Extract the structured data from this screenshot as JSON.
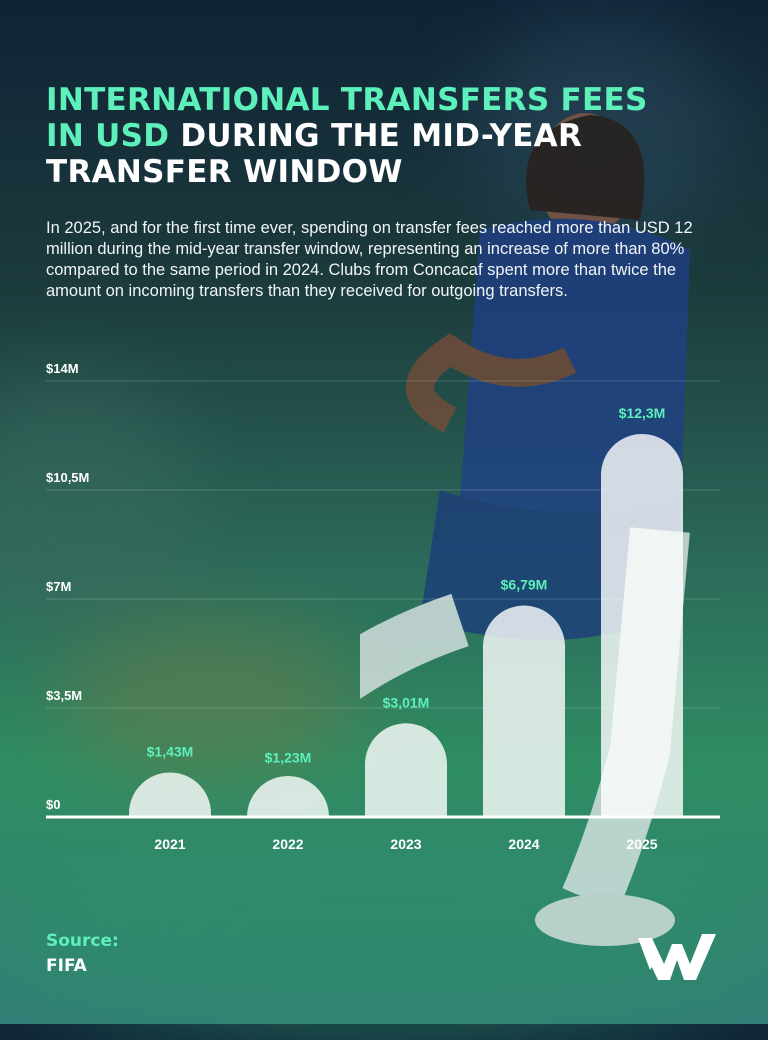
{
  "header": {
    "title_accent": "INTERNATIONAL TRANSFERS FEES IN USD",
    "title_rest": " DURING THE MID-YEAR TRANSFER WINDOW",
    "intro": "In 2025, and for the first time ever, spending on transfer fees reached more than USD 12 million during the mid-year transfer window, representing an increase of more than 80% compared to the same period in 2024. Clubs from Concacaf spent more than twice the amount on incoming transfers than they received for outgoing transfers."
  },
  "chart_data": {
    "type": "bar",
    "categories": [
      "2021",
      "2022",
      "2023",
      "2024",
      "2025"
    ],
    "values": [
      1.43,
      1.23,
      3.01,
      6.79,
      12.3
    ],
    "data_labels": [
      "$1,43M",
      "$1,23M",
      "$3,01M",
      "$6,79M",
      "$12,3M"
    ],
    "y_ticks": [
      0,
      3.5,
      7,
      10.5,
      14
    ],
    "y_tick_labels": [
      "$0",
      "$3,5M",
      "$7M",
      "$10,5M",
      "$14M"
    ],
    "ylim": [
      0,
      14
    ],
    "grid": true,
    "colors": {
      "bar": "#ffffff",
      "label": "#5ef0bb",
      "tick": "#ffffff"
    }
  },
  "footer": {
    "source_label": "Source:",
    "source_value": "FIFA",
    "logo_icon": "w-logo-icon"
  },
  "colors": {
    "accent": "#5ef0bb"
  }
}
